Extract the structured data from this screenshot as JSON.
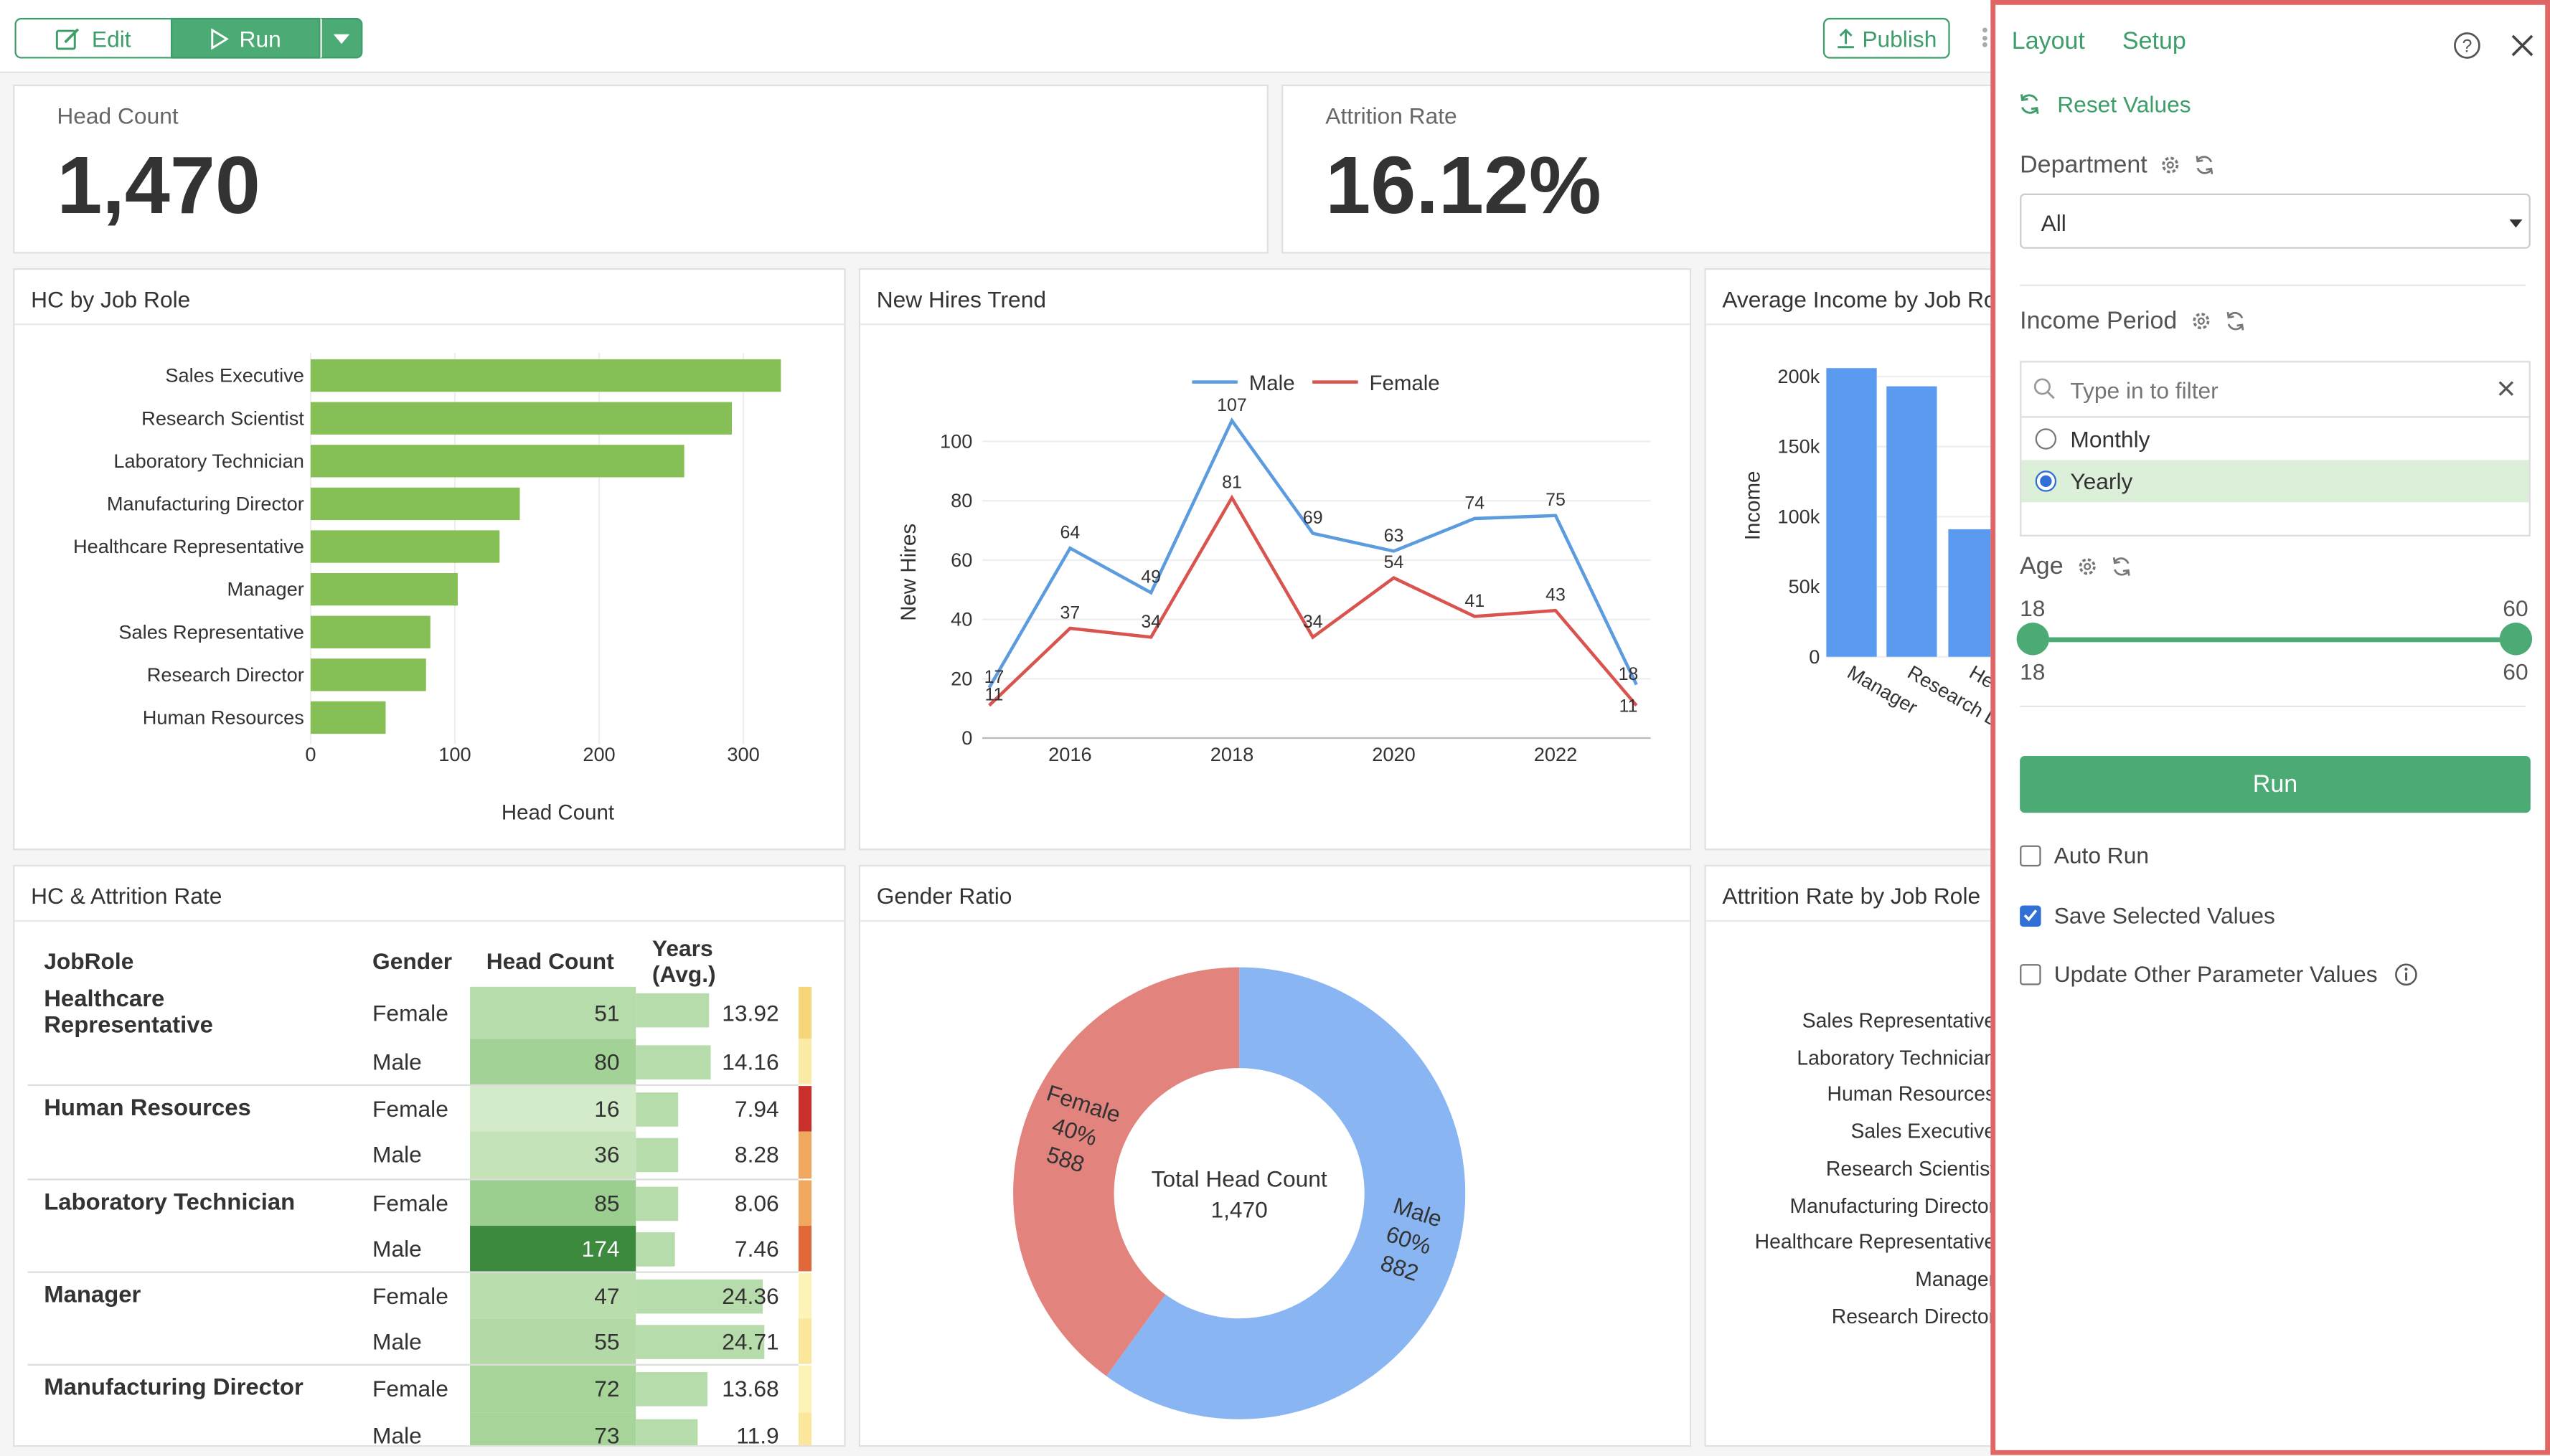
{
  "toolbar": {
    "edit_label": "Edit",
    "run_label": "Run",
    "publish_label": "Publish"
  },
  "kpis": [
    {
      "label": "Head Count",
      "value": "1,470"
    },
    {
      "label": "Attrition Rate",
      "value": "16.12%"
    }
  ],
  "hc_by_job_role": {
    "title": "HC by Job Role",
    "chart_data": {
      "type": "bar",
      "orientation": "horizontal",
      "categories": [
        "Sales Executive",
        "Research Scientist",
        "Laboratory Technician",
        "Manufacturing Director",
        "Healthcare Representative",
        "Manager",
        "Sales Representative",
        "Research Director",
        "Human Resources"
      ],
      "values": [
        326,
        292,
        259,
        145,
        131,
        102,
        83,
        80,
        52
      ],
      "xlabel": "Head Count",
      "xticks": [
        "0",
        "100",
        "200",
        "300"
      ],
      "xlim": [
        0,
        350
      ],
      "color": "#86bf55"
    }
  },
  "new_hires": {
    "title": "New Hires Trend",
    "chart_data": {
      "type": "line",
      "x": [
        2015,
        2016,
        2017,
        2018,
        2019,
        2020,
        2021,
        2022,
        2023
      ],
      "series": [
        {
          "name": "Male",
          "color": "#5b9bde",
          "values": [
            17,
            64,
            49,
            107,
            69,
            63,
            74,
            75,
            18
          ]
        },
        {
          "name": "Female",
          "color": "#d9534f",
          "values": [
            11,
            37,
            34,
            81,
            34,
            54,
            41,
            43,
            11
          ]
        }
      ],
      "ylabel": "New Hires",
      "yticks": [
        "0",
        "20",
        "40",
        "60",
        "80",
        "100"
      ],
      "xticks": [
        "2016",
        "2018",
        "2020",
        "2022"
      ],
      "ylim": [
        0,
        115
      ]
    }
  },
  "avg_income": {
    "title": "Average Income by Job Role",
    "chart_data": {
      "type": "bar",
      "categories": [
        "Manager",
        "Research Director",
        "Healthcare Representative"
      ],
      "values": [
        206000,
        193000,
        91000
      ],
      "ylabel": "Income",
      "yticks": [
        "0",
        "50k",
        "100k",
        "150k",
        "200k"
      ],
      "ylim": [
        0,
        220000
      ],
      "color": "#5b9bef"
    },
    "xtick_labels": [
      "Manager",
      "Research D",
      "He"
    ]
  },
  "hc_attrition": {
    "title": "HC & Attrition Rate",
    "headers": [
      "JobRole",
      "Gender",
      "Head Count",
      "Years (Avg.)"
    ],
    "rows": [
      {
        "role": "Healthcare Representative",
        "gender": "Female",
        "hc": "51",
        "years": "13.92",
        "hc_color": "#b7dcab",
        "bar": 0.56,
        "attr_color": "#f5d67a"
      },
      {
        "role": "",
        "gender": "Male",
        "hc": "80",
        "years": "14.16",
        "hc_color": "#a3d296",
        "bar": 0.57,
        "attr_color": "#fbeaa6"
      },
      {
        "role": "Human Resources",
        "gender": "Female",
        "hc": "16",
        "years": "7.94",
        "hc_color": "#d3ebc9",
        "bar": 0.32,
        "attr_color": "#c9302c"
      },
      {
        "role": "",
        "gender": "Male",
        "hc": "36",
        "years": "8.28",
        "hc_color": "#c4e3b8",
        "bar": 0.33,
        "attr_color": "#f0a860"
      },
      {
        "role": "Laboratory Technician",
        "gender": "Female",
        "hc": "85",
        "years": "8.06",
        "hc_color": "#9ccf8f",
        "bar": 0.32,
        "attr_color": "#f0a860"
      },
      {
        "role": "",
        "gender": "Male",
        "hc": "174",
        "years": "7.46",
        "hc_color": "#3b8a3e",
        "bar": 0.3,
        "attr_color": "#e0683a"
      },
      {
        "role": "Manager",
        "gender": "Female",
        "hc": "47",
        "years": "24.36",
        "hc_color": "#b9ddad",
        "bar": 0.98,
        "attr_color": "#fdf2b8"
      },
      {
        "role": "",
        "gender": "Male",
        "hc": "55",
        "years": "24.71",
        "hc_color": "#b3daa6",
        "bar": 0.99,
        "attr_color": "#fbe79c"
      },
      {
        "role": "Manufacturing Director",
        "gender": "Female",
        "hc": "72",
        "years": "13.68",
        "hc_color": "#a6d499",
        "bar": 0.55,
        "attr_color": "#fdf2b8"
      },
      {
        "role": "",
        "gender": "Male",
        "hc": "73",
        "years": "11.9",
        "hc_color": "#a6d499",
        "bar": 0.48,
        "attr_color": "#fbe79c"
      }
    ]
  },
  "gender_ratio": {
    "title": "Gender Ratio",
    "center_label": "Total Head Count",
    "center_value": "1,470",
    "chart_data": {
      "type": "pie",
      "categories": [
        "Male",
        "Female"
      ],
      "values": [
        882,
        588
      ],
      "percent_labels": [
        "60%",
        "40%"
      ],
      "value_labels": [
        "882",
        "588"
      ],
      "colors": [
        "#89b6f2",
        "#e2837d"
      ]
    }
  },
  "attrition_by_role": {
    "title": "Attrition Rate by Job Role",
    "labels": [
      "Sales Representative",
      "Laboratory Technician",
      "Human Resources",
      "Sales Executive",
      "Research Scientist",
      "Manufacturing Director",
      "Healthcare Representative",
      "Manager",
      "Research Director"
    ]
  },
  "panel": {
    "tab_layout": "Layout",
    "tab_setup": "Setup",
    "reset_label": "Reset Values",
    "department_label": "Department",
    "department_value": "All",
    "income_label": "Income Period",
    "filter_placeholder": "Type in to filter",
    "options": [
      {
        "label": "Monthly",
        "selected": false
      },
      {
        "label": "Yearly",
        "selected": true
      }
    ],
    "age_label": "Age",
    "age_min": "18",
    "age_max": "60",
    "age_min_value": "18",
    "age_max_value": "60",
    "run_label": "Run",
    "auto_run_label": "Auto Run",
    "save_values_label": "Save Selected Values",
    "update_others_label": "Update Other Parameter Values",
    "checks": {
      "auto_run": false,
      "save_values": true,
      "update_others": false
    }
  },
  "colors": {
    "accent": "#3d9e6a",
    "panel_border": "#e06666"
  }
}
